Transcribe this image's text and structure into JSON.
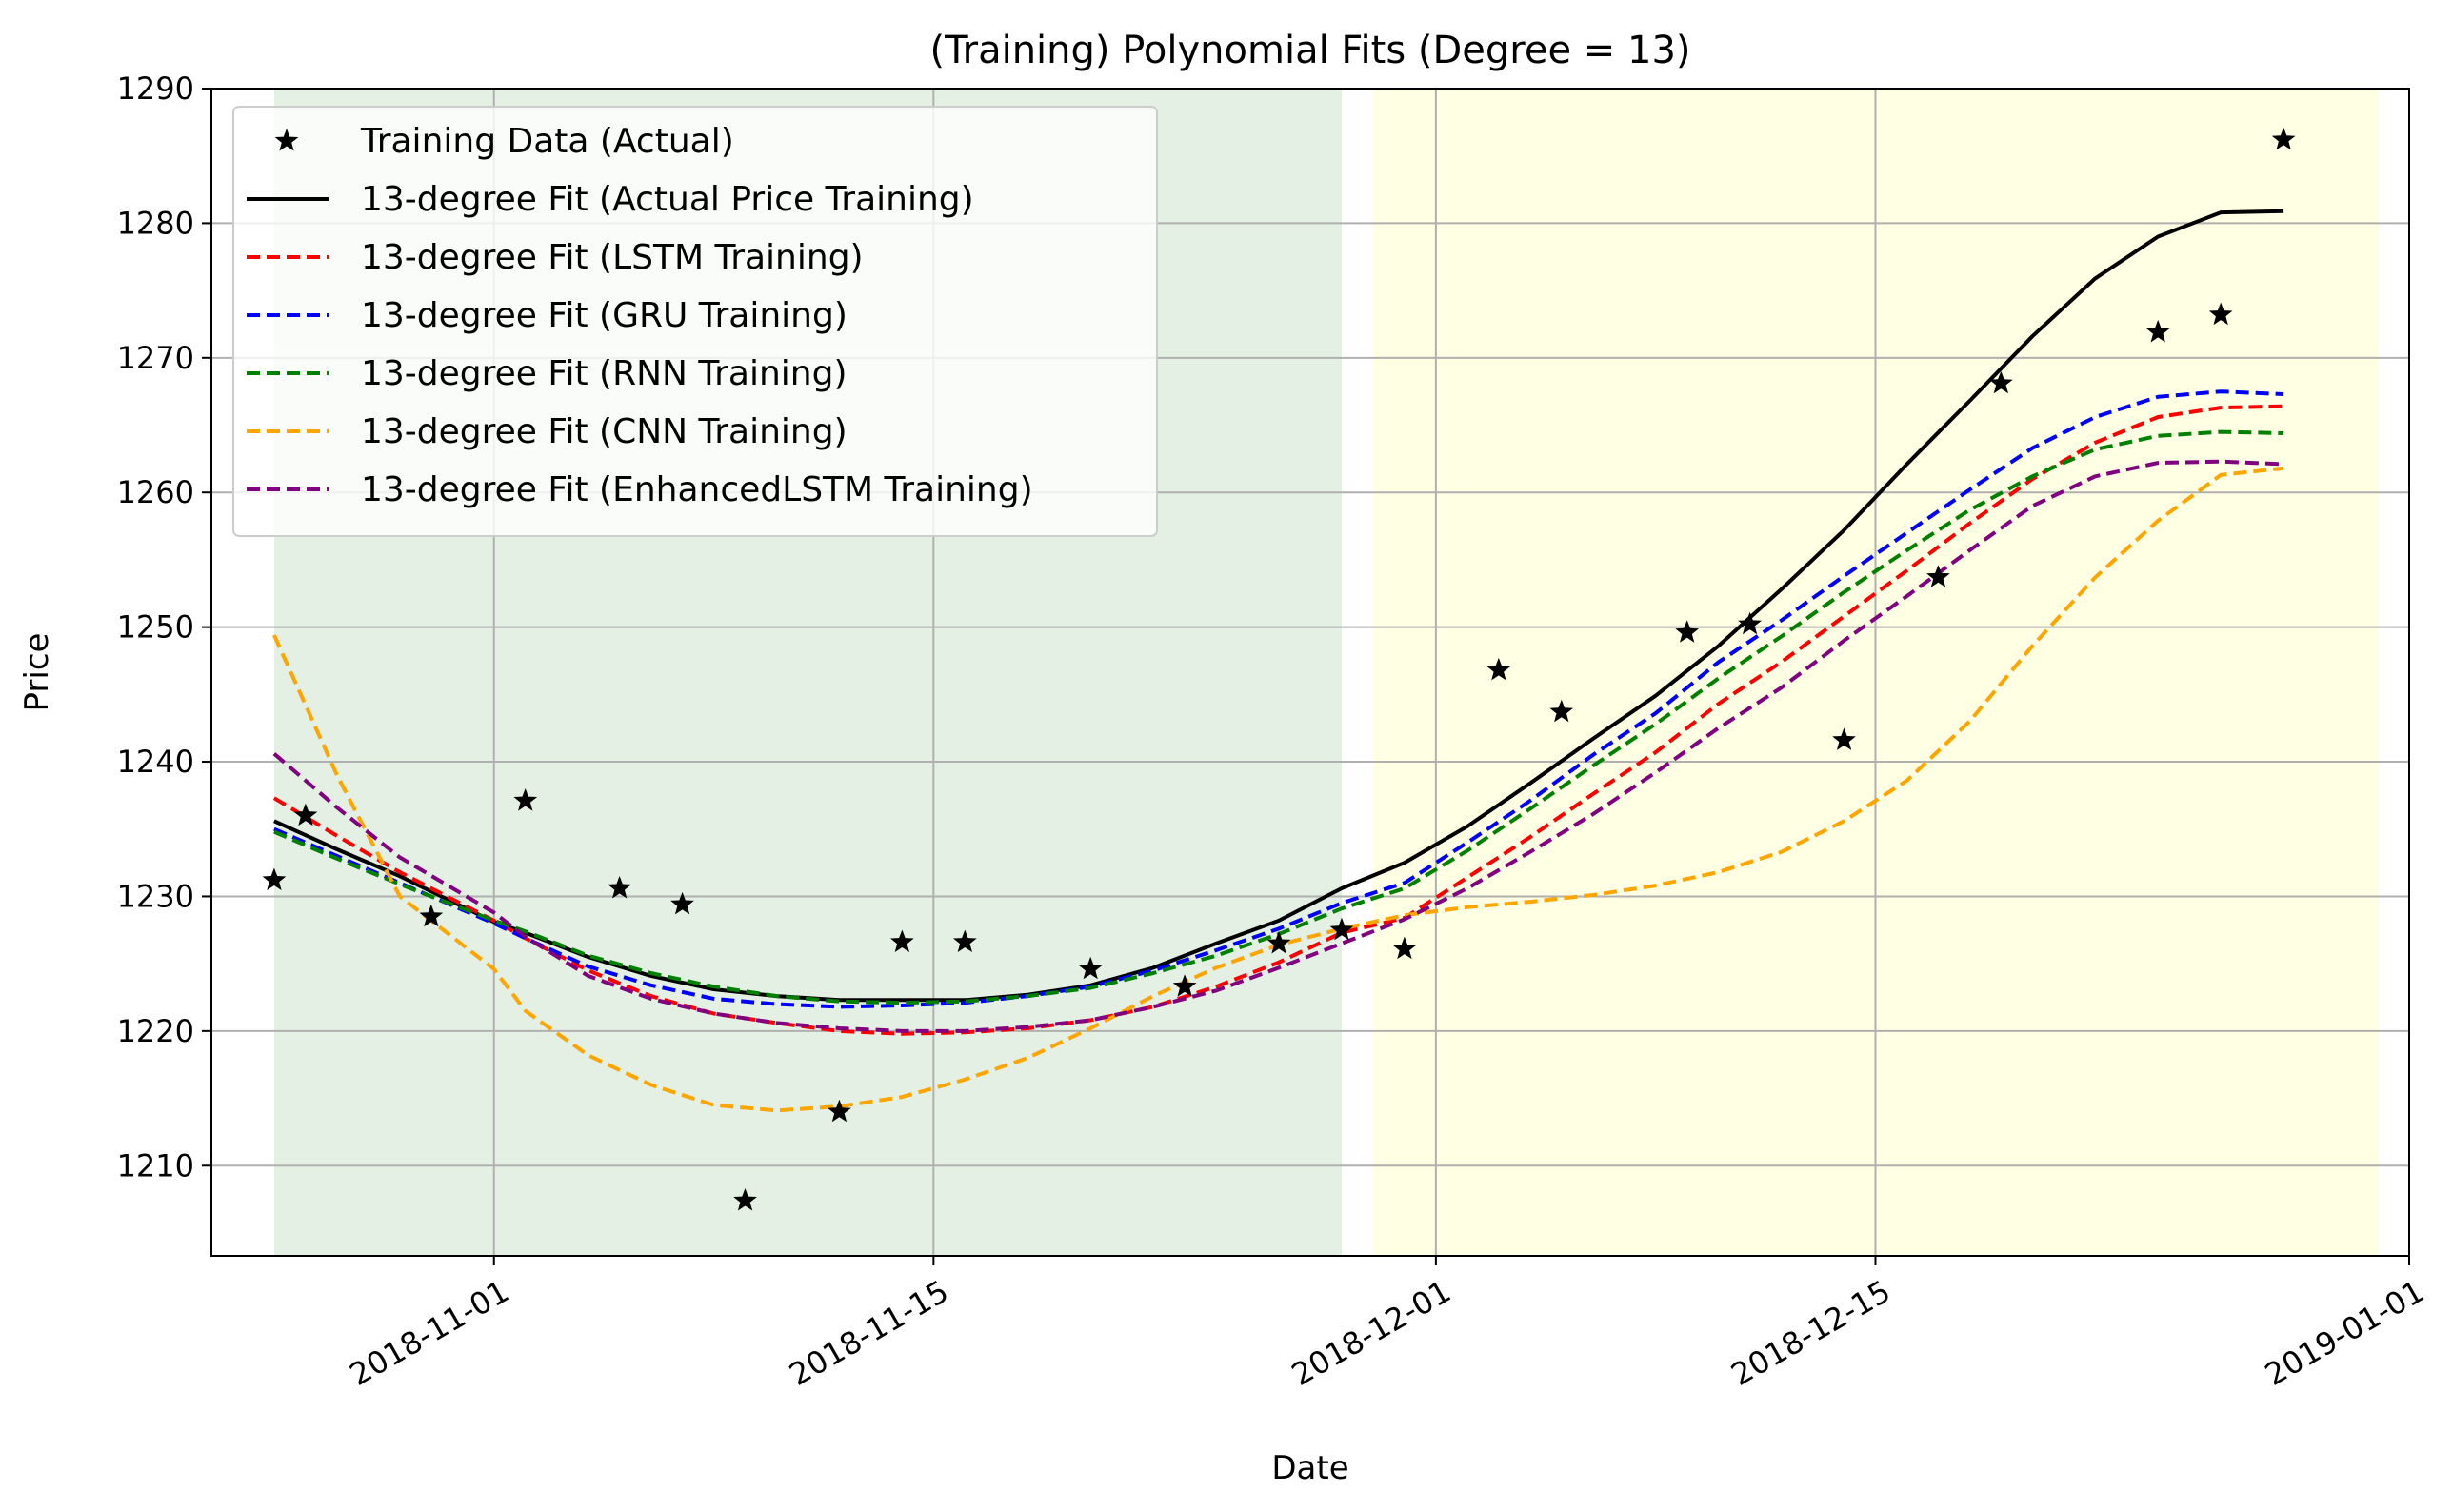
{
  "chart_data": {
    "type": "line",
    "title": "(Training) Polynomial Fits (Degree = 13)",
    "xlabel": "Date",
    "ylabel": "Price",
    "x_range": [
      "2018-10-23",
      "2019-01-01"
    ],
    "ylim": [
      1203.3,
      1290
    ],
    "y_ticks": [
      1210,
      1220,
      1230,
      1240,
      1250,
      1260,
      1270,
      1280,
      1290
    ],
    "x_ticks": [
      "2018-11-01",
      "2018-11-15",
      "2018-12-01",
      "2018-12-15",
      "2019-01-01"
    ],
    "grid": true,
    "legend_position": "upper-left",
    "shaded_regions": [
      {
        "start": "2018-10-25",
        "end": "2018-11-28",
        "color": "#e4f0e4"
      },
      {
        "start": "2018-11-29",
        "end": "2018-12-31",
        "color": "#ffffe4"
      }
    ],
    "x": [
      "2018-10-25",
      "2018-10-27",
      "2018-10-29",
      "2018-11-01",
      "2018-11-02",
      "2018-11-04",
      "2018-11-06",
      "2018-11-08",
      "2018-11-10",
      "2018-11-12",
      "2018-11-14",
      "2018-11-16",
      "2018-11-18",
      "2018-11-20",
      "2018-11-22",
      "2018-11-24",
      "2018-11-26",
      "2018-11-28",
      "2018-11-30",
      "2018-12-02",
      "2018-12-04",
      "2018-12-06",
      "2018-12-08",
      "2018-12-10",
      "2018-12-12",
      "2018-12-14",
      "2018-12-16",
      "2018-12-18",
      "2018-12-20",
      "2018-12-22",
      "2018-12-24",
      "2018-12-26",
      "2018-12-28"
    ],
    "series": [
      {
        "name": "13-degree Fit (Actual Price Training)",
        "color": "#000000",
        "style": "solid",
        "values": [
          1235.6,
          1233.5,
          1231.5,
          1228.1,
          1227.3,
          1225.5,
          1224.1,
          1223.1,
          1222.6,
          1222.3,
          1222.3,
          1222.3,
          1222.7,
          1223.4,
          1224.7,
          1226.5,
          1228.2,
          1230.6,
          1232.5,
          1235.2,
          1238.4,
          1241.7,
          1244.9,
          1248.6,
          1252.8,
          1257.2,
          1262.1,
          1266.8,
          1271.6,
          1275.9,
          1279.0,
          1280.8,
          1280.9
        ]
      },
      {
        "name": "13-degree Fit (LSTM Training)",
        "color": "#ff0000",
        "style": "dashed",
        "values": [
          1237.3,
          1234.5,
          1231.8,
          1228.2,
          1226.9,
          1224.5,
          1222.6,
          1221.3,
          1220.6,
          1220.0,
          1219.8,
          1219.9,
          1220.2,
          1220.8,
          1221.8,
          1223.3,
          1225.1,
          1227.3,
          1228.4,
          1231.4,
          1234.4,
          1237.6,
          1240.7,
          1244.3,
          1247.4,
          1250.8,
          1254.2,
          1257.7,
          1261.0,
          1263.7,
          1265.6,
          1266.3,
          1266.4
        ]
      },
      {
        "name": "13-degree Fit (GRU Training)",
        "color": "#0000ff",
        "style": "dashed",
        "values": [
          1235.0,
          1233.0,
          1231.0,
          1228.0,
          1226.9,
          1224.8,
          1223.4,
          1222.4,
          1222.0,
          1221.8,
          1221.9,
          1222.1,
          1222.6,
          1223.3,
          1224.5,
          1226.0,
          1227.6,
          1229.5,
          1231.0,
          1234.0,
          1237.1,
          1240.5,
          1243.6,
          1247.4,
          1250.5,
          1253.8,
          1257.0,
          1260.2,
          1263.3,
          1265.6,
          1267.1,
          1267.5,
          1267.3
        ]
      },
      {
        "name": "13-degree Fit (RNN Training)",
        "color": "#008000",
        "style": "dashed",
        "values": [
          1234.8,
          1232.8,
          1230.9,
          1228.2,
          1227.4,
          1225.6,
          1224.3,
          1223.3,
          1222.6,
          1222.2,
          1222.1,
          1222.2,
          1222.6,
          1223.2,
          1224.3,
          1225.6,
          1227.2,
          1229.1,
          1230.6,
          1233.4,
          1236.5,
          1239.7,
          1242.8,
          1246.2,
          1249.3,
          1252.6,
          1255.7,
          1258.7,
          1261.2,
          1263.2,
          1264.2,
          1264.5,
          1264.4
        ]
      },
      {
        "name": "13-degree Fit (CNN Training)",
        "color": "#ffa500",
        "style": "dashed",
        "values": [
          1249.4,
          1239.0,
          1230.0,
          1224.6,
          1221.5,
          1218.2,
          1216.0,
          1214.5,
          1214.1,
          1214.4,
          1215.1,
          1216.4,
          1218.0,
          1220.2,
          1222.6,
          1224.7,
          1226.4,
          1227.6,
          1228.6,
          1229.2,
          1229.6,
          1230.1,
          1230.8,
          1231.8,
          1233.3,
          1235.6,
          1238.6,
          1243.0,
          1248.6,
          1253.7,
          1257.9,
          1261.3,
          1261.8
        ]
      },
      {
        "name": "13-degree Fit (EnhancedLSTM Training)",
        "color": "#800080",
        "style": "dashed",
        "values": [
          1240.6,
          1236.6,
          1232.9,
          1228.8,
          1227.0,
          1224.1,
          1222.4,
          1221.3,
          1220.6,
          1220.2,
          1220.0,
          1220.0,
          1220.3,
          1220.8,
          1221.8,
          1223.0,
          1224.7,
          1226.5,
          1228.3,
          1230.6,
          1233.3,
          1236.1,
          1239.2,
          1242.5,
          1245.5,
          1249.0,
          1252.3,
          1255.7,
          1259.0,
          1261.2,
          1262.2,
          1262.3,
          1262.1
        ]
      }
    ],
    "scatter": {
      "name": "Training Data (Actual)",
      "marker": "star",
      "color": "#000000",
      "x": [
        "2018-10-25",
        "2018-10-26",
        "2018-10-30",
        "2018-11-02",
        "2018-11-05",
        "2018-11-07",
        "2018-11-09",
        "2018-11-12",
        "2018-11-14",
        "2018-11-16",
        "2018-11-20",
        "2018-11-23",
        "2018-11-26",
        "2018-11-28",
        "2018-11-30",
        "2018-12-03",
        "2018-12-05",
        "2018-12-09",
        "2018-12-11",
        "2018-12-14",
        "2018-12-17",
        "2018-12-19",
        "2018-12-24",
        "2018-12-26",
        "2018-12-28"
      ],
      "y": [
        1231.2,
        1236.0,
        1228.5,
        1237.1,
        1230.6,
        1229.4,
        1207.4,
        1214.0,
        1226.6,
        1226.6,
        1224.6,
        1223.3,
        1226.5,
        1227.5,
        1226.1,
        1246.8,
        1243.7,
        1249.6,
        1250.2,
        1241.6,
        1253.7,
        1268.1,
        1271.9,
        1273.2,
        1286.2
      ]
    }
  }
}
